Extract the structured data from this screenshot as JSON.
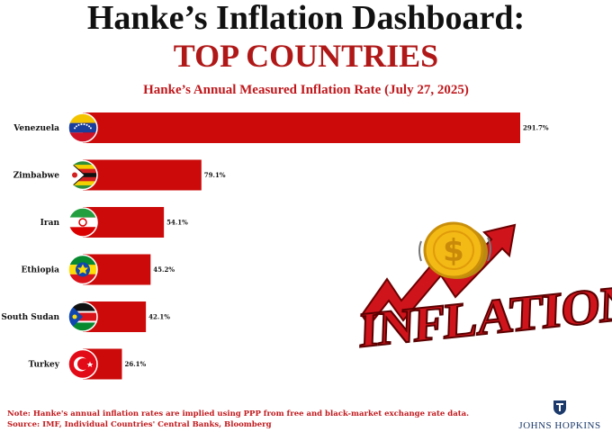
{
  "header": {
    "title": "Hanke’s Inflation Dashboard:",
    "subtitle_big": "TOP COUNTRIES",
    "chart_title": "Hanke’s Annual Measured Inflation Rate (July 27, 2025)"
  },
  "chart_data": {
    "type": "bar",
    "orientation": "horizontal",
    "title": "Hanke’s Annual Measured Inflation Rate (July 27, 2025)",
    "categories": [
      "Venezuela",
      "Zimbabwe",
      "Iran",
      "Ethiopia",
      "South Sudan",
      "Turkey"
    ],
    "values": [
      291.7,
      79.1,
      54.1,
      45.2,
      42.1,
      26.1
    ],
    "value_labels": [
      "291.7%",
      "79.1%",
      "54.1%",
      "45.2%",
      "42.1%",
      "26.1%"
    ],
    "xlim": [
      0,
      291.7
    ],
    "grid": false,
    "bar_color": "#cc0a0a",
    "flag_icons": [
      "venezuela-flag-icon",
      "zimbabwe-flag-icon",
      "iran-flag-icon",
      "ethiopia-flag-icon",
      "south-sudan-flag-icon",
      "turkey-flag-icon"
    ]
  },
  "illustration": {
    "word": "INFLATION",
    "icons": [
      "dollar-coin-icon",
      "rising-arrow-icon"
    ]
  },
  "footer": {
    "note": "Note: Hanke's annual inflation rates are implied using PPP from free and black-market exchange rate data.",
    "source": "Source: IMF, Individual Countries' Central Banks, Bloomberg",
    "logo_text": "JOHNS HOPKINS"
  },
  "colors": {
    "accent_red": "#c0181c",
    "title_red": "#b01818",
    "logo_blue": "#1b3a6b"
  }
}
